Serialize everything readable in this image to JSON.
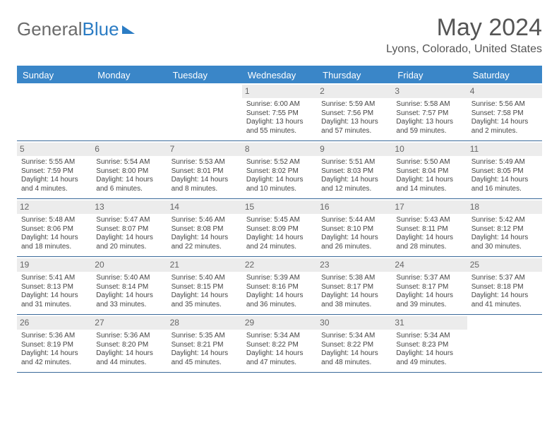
{
  "brand": {
    "part1": "General",
    "part2": "Blue"
  },
  "title": "May 2024",
  "location": "Lyons, Colorado, United States",
  "header_bg": "#3a86c8",
  "header_text": "#ffffff",
  "daynum_bg": "#ececec",
  "border_color": "#3a6a9a",
  "day_names": [
    "Sunday",
    "Monday",
    "Tuesday",
    "Wednesday",
    "Thursday",
    "Friday",
    "Saturday"
  ],
  "weeks": [
    [
      null,
      null,
      null,
      {
        "n": "1",
        "sr": "6:00 AM",
        "ss": "7:55 PM",
        "dl": "13 hours and 55 minutes."
      },
      {
        "n": "2",
        "sr": "5:59 AM",
        "ss": "7:56 PM",
        "dl": "13 hours and 57 minutes."
      },
      {
        "n": "3",
        "sr": "5:58 AM",
        "ss": "7:57 PM",
        "dl": "13 hours and 59 minutes."
      },
      {
        "n": "4",
        "sr": "5:56 AM",
        "ss": "7:58 PM",
        "dl": "14 hours and 2 minutes."
      }
    ],
    [
      {
        "n": "5",
        "sr": "5:55 AM",
        "ss": "7:59 PM",
        "dl": "14 hours and 4 minutes."
      },
      {
        "n": "6",
        "sr": "5:54 AM",
        "ss": "8:00 PM",
        "dl": "14 hours and 6 minutes."
      },
      {
        "n": "7",
        "sr": "5:53 AM",
        "ss": "8:01 PM",
        "dl": "14 hours and 8 minutes."
      },
      {
        "n": "8",
        "sr": "5:52 AM",
        "ss": "8:02 PM",
        "dl": "14 hours and 10 minutes."
      },
      {
        "n": "9",
        "sr": "5:51 AM",
        "ss": "8:03 PM",
        "dl": "14 hours and 12 minutes."
      },
      {
        "n": "10",
        "sr": "5:50 AM",
        "ss": "8:04 PM",
        "dl": "14 hours and 14 minutes."
      },
      {
        "n": "11",
        "sr": "5:49 AM",
        "ss": "8:05 PM",
        "dl": "14 hours and 16 minutes."
      }
    ],
    [
      {
        "n": "12",
        "sr": "5:48 AM",
        "ss": "8:06 PM",
        "dl": "14 hours and 18 minutes."
      },
      {
        "n": "13",
        "sr": "5:47 AM",
        "ss": "8:07 PM",
        "dl": "14 hours and 20 minutes."
      },
      {
        "n": "14",
        "sr": "5:46 AM",
        "ss": "8:08 PM",
        "dl": "14 hours and 22 minutes."
      },
      {
        "n": "15",
        "sr": "5:45 AM",
        "ss": "8:09 PM",
        "dl": "14 hours and 24 minutes."
      },
      {
        "n": "16",
        "sr": "5:44 AM",
        "ss": "8:10 PM",
        "dl": "14 hours and 26 minutes."
      },
      {
        "n": "17",
        "sr": "5:43 AM",
        "ss": "8:11 PM",
        "dl": "14 hours and 28 minutes."
      },
      {
        "n": "18",
        "sr": "5:42 AM",
        "ss": "8:12 PM",
        "dl": "14 hours and 30 minutes."
      }
    ],
    [
      {
        "n": "19",
        "sr": "5:41 AM",
        "ss": "8:13 PM",
        "dl": "14 hours and 31 minutes."
      },
      {
        "n": "20",
        "sr": "5:40 AM",
        "ss": "8:14 PM",
        "dl": "14 hours and 33 minutes."
      },
      {
        "n": "21",
        "sr": "5:40 AM",
        "ss": "8:15 PM",
        "dl": "14 hours and 35 minutes."
      },
      {
        "n": "22",
        "sr": "5:39 AM",
        "ss": "8:16 PM",
        "dl": "14 hours and 36 minutes."
      },
      {
        "n": "23",
        "sr": "5:38 AM",
        "ss": "8:17 PM",
        "dl": "14 hours and 38 minutes."
      },
      {
        "n": "24",
        "sr": "5:37 AM",
        "ss": "8:17 PM",
        "dl": "14 hours and 39 minutes."
      },
      {
        "n": "25",
        "sr": "5:37 AM",
        "ss": "8:18 PM",
        "dl": "14 hours and 41 minutes."
      }
    ],
    [
      {
        "n": "26",
        "sr": "5:36 AM",
        "ss": "8:19 PM",
        "dl": "14 hours and 42 minutes."
      },
      {
        "n": "27",
        "sr": "5:36 AM",
        "ss": "8:20 PM",
        "dl": "14 hours and 44 minutes."
      },
      {
        "n": "28",
        "sr": "5:35 AM",
        "ss": "8:21 PM",
        "dl": "14 hours and 45 minutes."
      },
      {
        "n": "29",
        "sr": "5:34 AM",
        "ss": "8:22 PM",
        "dl": "14 hours and 47 minutes."
      },
      {
        "n": "30",
        "sr": "5:34 AM",
        "ss": "8:22 PM",
        "dl": "14 hours and 48 minutes."
      },
      {
        "n": "31",
        "sr": "5:34 AM",
        "ss": "8:23 PM",
        "dl": "14 hours and 49 minutes."
      },
      null
    ]
  ],
  "labels": {
    "sunrise": "Sunrise: ",
    "sunset": "Sunset: ",
    "daylight": "Daylight: "
  }
}
